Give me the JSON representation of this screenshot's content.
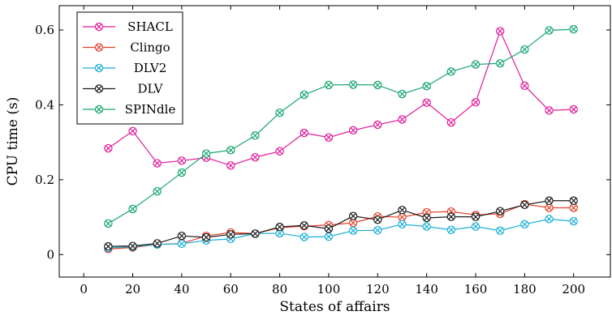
{
  "chart_data": {
    "type": "line",
    "xlabel": "States of affairs",
    "ylabel": "CPU time (s)",
    "xlim": [
      -10,
      215
    ],
    "ylim": [
      -0.06,
      0.665
    ],
    "xticks": [
      "0",
      "20",
      "40",
      "60",
      "80",
      "100",
      "120",
      "140",
      "160",
      "180",
      "200"
    ],
    "yticks": [
      "0",
      "0.2",
      "0.4",
      "0.6"
    ],
    "legend_position": "top-left",
    "grid": false,
    "x": [
      10,
      20,
      30,
      40,
      50,
      60,
      70,
      80,
      90,
      100,
      110,
      120,
      130,
      140,
      150,
      160,
      170,
      180,
      190,
      200
    ],
    "series": [
      {
        "name": "SHACL",
        "color": "#e01b9b",
        "values": [
          0.284,
          0.33,
          0.244,
          0.251,
          0.259,
          0.238,
          0.26,
          0.276,
          0.325,
          0.313,
          0.332,
          0.347,
          0.361,
          0.406,
          0.353,
          0.407,
          0.597,
          0.451,
          0.385,
          0.388
        ]
      },
      {
        "name": "Clingo",
        "color": "#e8402a",
        "values": [
          0.015,
          0.019,
          0.027,
          0.03,
          0.05,
          0.059,
          0.056,
          0.072,
          0.076,
          0.079,
          0.085,
          0.102,
          0.1,
          0.113,
          0.115,
          0.106,
          0.109,
          0.135,
          0.125,
          0.125
        ]
      },
      {
        "name": "DLV2",
        "color": "#1aafd8",
        "values": [
          0.018,
          0.021,
          0.027,
          0.029,
          0.038,
          0.042,
          0.056,
          0.057,
          0.047,
          0.048,
          0.064,
          0.065,
          0.081,
          0.075,
          0.066,
          0.075,
          0.064,
          0.081,
          0.095,
          0.089
        ]
      },
      {
        "name": "DLV",
        "color": "#1a1a1a",
        "values": [
          0.022,
          0.023,
          0.03,
          0.05,
          0.046,
          0.054,
          0.056,
          0.074,
          0.078,
          0.069,
          0.103,
          0.093,
          0.119,
          0.098,
          0.101,
          0.101,
          0.116,
          0.133,
          0.144,
          0.144
        ]
      },
      {
        "name": "SPINdle",
        "color": "#16a56e",
        "values": [
          0.083,
          0.122,
          0.169,
          0.219,
          0.27,
          0.279,
          0.318,
          0.379,
          0.427,
          0.453,
          0.454,
          0.453,
          0.429,
          0.45,
          0.489,
          0.508,
          0.511,
          0.548,
          0.599,
          0.602
        ]
      }
    ]
  }
}
